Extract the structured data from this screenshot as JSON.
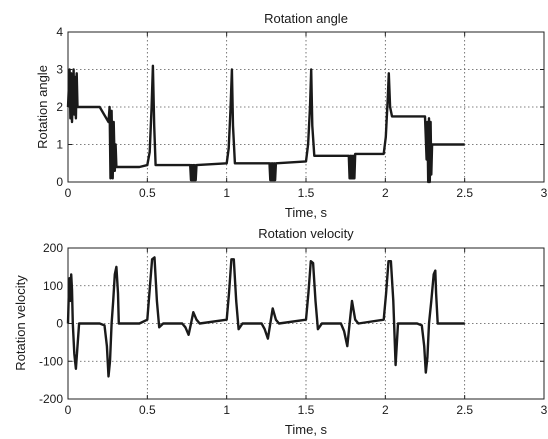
{
  "chart_data": [
    {
      "type": "line",
      "title": "Rotation angle",
      "xlabel": "Time, s",
      "ylabel": "Rotation angle",
      "xlim": [
        0,
        3
      ],
      "ylim": [
        0,
        4
      ],
      "xticks": [
        0,
        0.5,
        1,
        1.5,
        2,
        2.5,
        3
      ],
      "yticks": [
        0,
        1,
        2,
        3,
        4
      ],
      "xtick_labels": [
        "0",
        "0.5",
        "1",
        "1.5",
        "2",
        "2.5",
        "3"
      ],
      "ytick_labels": [
        "0",
        "1",
        "2",
        "3",
        "4"
      ],
      "grid": true,
      "series": [
        {
          "x": [
            0,
            0.01,
            0.015,
            0.02,
            0.025,
            0.03,
            0.035,
            0.04,
            0.045,
            0.05,
            0.055,
            0.06,
            0.07,
            0.1,
            0.2,
            0.255,
            0.262,
            0.268,
            0.275,
            0.282,
            0.288,
            0.295,
            0.3,
            0.305,
            0.31,
            0.34,
            0.45,
            0.5,
            0.515,
            0.527,
            0.535,
            0.543,
            0.552,
            0.565,
            0.6,
            0.77,
            0.775,
            0.78,
            0.785,
            0.79,
            0.795,
            0.8,
            0.805,
            0.81,
            1.0,
            1.013,
            1.025,
            1.033,
            1.04,
            1.052,
            1.065,
            1.1,
            1.27,
            1.275,
            1.28,
            1.285,
            1.29,
            1.295,
            1.3,
            1.305,
            1.31,
            1.5,
            1.513,
            1.525,
            1.533,
            1.54,
            1.552,
            1.565,
            1.6,
            1.77,
            1.775,
            1.78,
            1.785,
            1.79,
            1.795,
            1.8,
            1.805,
            1.81,
            1.99,
            2.003,
            2.015,
            2.022,
            2.03,
            2.042,
            2.055,
            2.08,
            2.2,
            2.25,
            2.26,
            2.265,
            2.27,
            2.275,
            2.28,
            2.285,
            2.29,
            2.295,
            2.3,
            2.31,
            2.5
          ],
          "y": [
            2.0,
            3.0,
            1.7,
            2.9,
            1.6,
            2.2,
            3.0,
            1.8,
            2.8,
            1.7,
            2.9,
            2.0,
            2.0,
            2.0,
            2.0,
            1.6,
            2.0,
            0.1,
            1.9,
            0.1,
            1.6,
            0.3,
            1.0,
            0.4,
            0.4,
            0.4,
            0.4,
            0.45,
            0.8,
            2.0,
            3.1,
            1.5,
            0.45,
            0.45,
            0.45,
            0.45,
            0.05,
            0.45,
            0.05,
            0.45,
            0.05,
            0.45,
            0.05,
            0.45,
            0.5,
            0.9,
            2.0,
            3.0,
            1.5,
            0.5,
            0.5,
            0.5,
            0.5,
            0.05,
            0.5,
            0.05,
            0.5,
            0.05,
            0.5,
            0.05,
            0.5,
            0.55,
            1.0,
            2.0,
            3.0,
            1.5,
            0.7,
            0.7,
            0.7,
            0.7,
            0.1,
            0.7,
            0.1,
            0.7,
            0.1,
            0.7,
            0.1,
            0.75,
            0.75,
            1.2,
            2.2,
            2.9,
            2.0,
            1.75,
            1.75,
            1.75,
            1.75,
            1.75,
            0.6,
            1.6,
            0.0,
            1.7,
            0.0,
            1.6,
            0.2,
            1.0,
            1.0,
            1.0,
            1.0
          ]
        }
      ]
    },
    {
      "type": "line",
      "title": "Rotation velocity",
      "xlabel": "Time, s",
      "ylabel": "Rotation velocity",
      "xlim": [
        0,
        3
      ],
      "ylim": [
        -200,
        200
      ],
      "xticks": [
        0,
        0.5,
        1,
        1.5,
        2,
        2.5,
        3
      ],
      "yticks": [
        -200,
        -100,
        0,
        100,
        200
      ],
      "xtick_labels": [
        "0",
        "0.5",
        "1",
        "1.5",
        "2",
        "2.5",
        "3"
      ],
      "ytick_labels": [
        "-200",
        "-100",
        "0",
        "100",
        "200"
      ],
      "grid": true,
      "series": [
        {
          "x": [
            0,
            0.005,
            0.01,
            0.015,
            0.02,
            0.025,
            0.03,
            0.04,
            0.05,
            0.06,
            0.07,
            0.1,
            0.2,
            0.23,
            0.245,
            0.255,
            0.265,
            0.275,
            0.285,
            0.295,
            0.305,
            0.315,
            0.32,
            0.33,
            0.45,
            0.5,
            0.515,
            0.53,
            0.545,
            0.56,
            0.575,
            0.6,
            0.72,
            0.74,
            0.76,
            0.775,
            0.79,
            0.81,
            0.83,
            1.0,
            1.015,
            1.03,
            1.045,
            1.06,
            1.075,
            1.1,
            1.22,
            1.24,
            1.26,
            1.275,
            1.29,
            1.31,
            1.33,
            1.5,
            1.515,
            1.53,
            1.545,
            1.56,
            1.575,
            1.6,
            1.72,
            1.74,
            1.76,
            1.775,
            1.79,
            1.81,
            1.83,
            1.99,
            2.005,
            2.02,
            2.035,
            2.05,
            2.065,
            2.08,
            2.2,
            2.23,
            2.245,
            2.255,
            2.265,
            2.275,
            2.29,
            2.305,
            2.315,
            2.32,
            2.33,
            2.5
          ],
          "y": [
            0,
            80,
            120,
            60,
            130,
            90,
            0,
            -80,
            -120,
            -60,
            0,
            0,
            0,
            -5,
            -60,
            -140,
            -100,
            0,
            60,
            130,
            150,
            80,
            0,
            0,
            0,
            10,
            90,
            170,
            175,
            60,
            -10,
            0,
            0,
            -10,
            -30,
            0,
            30,
            10,
            0,
            10,
            80,
            170,
            170,
            60,
            -15,
            0,
            0,
            -15,
            -40,
            0,
            40,
            10,
            0,
            10,
            80,
            165,
            160,
            60,
            -15,
            0,
            0,
            -20,
            -60,
            0,
            60,
            10,
            0,
            10,
            80,
            165,
            165,
            60,
            -110,
            0,
            0,
            -5,
            -60,
            -130,
            -90,
            0,
            60,
            130,
            140,
            80,
            0,
            0
          ]
        }
      ]
    }
  ]
}
